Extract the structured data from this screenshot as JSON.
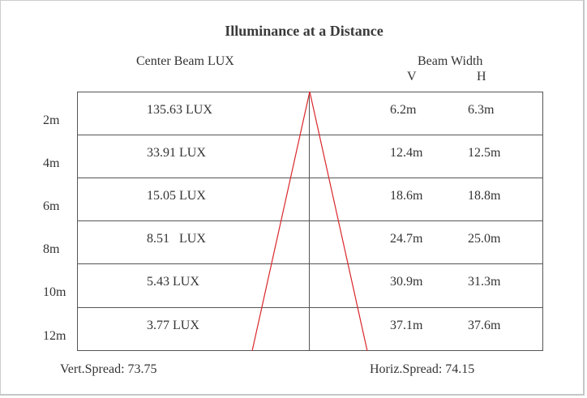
{
  "title": "Illuminance at a Distance",
  "center_header": "Center Beam LUX",
  "beam_width_header": "Beam Width",
  "v_label": "V",
  "h_label": "H",
  "rows": [
    {
      "distance": "2m",
      "lux": "135.63 LUX",
      "v": "6.2m",
      "h": "6.3m"
    },
    {
      "distance": "4m",
      "lux": "33.91 LUX",
      "v": "12.4m",
      "h": "12.5m"
    },
    {
      "distance": "6m",
      "lux": "15.05 LUX",
      "v": "18.6m",
      "h": "18.8m"
    },
    {
      "distance": "8m",
      "lux": "8.51   LUX",
      "v": "24.7m",
      "h": "25.0m"
    },
    {
      "distance": "10m",
      "lux": "5.43 LUX",
      "v": "30.9m",
      "h": "31.3m"
    },
    {
      "distance": "12m",
      "lux": "3.77 LUX",
      "v": "37.1m",
      "h": "37.6m"
    }
  ],
  "vert_spread": "Vert.Spread: 73.75",
  "horiz_spread": "Horiz.Spread: 74.15",
  "colors": {
    "grid": "#555555",
    "beam": "#d9262b"
  }
}
